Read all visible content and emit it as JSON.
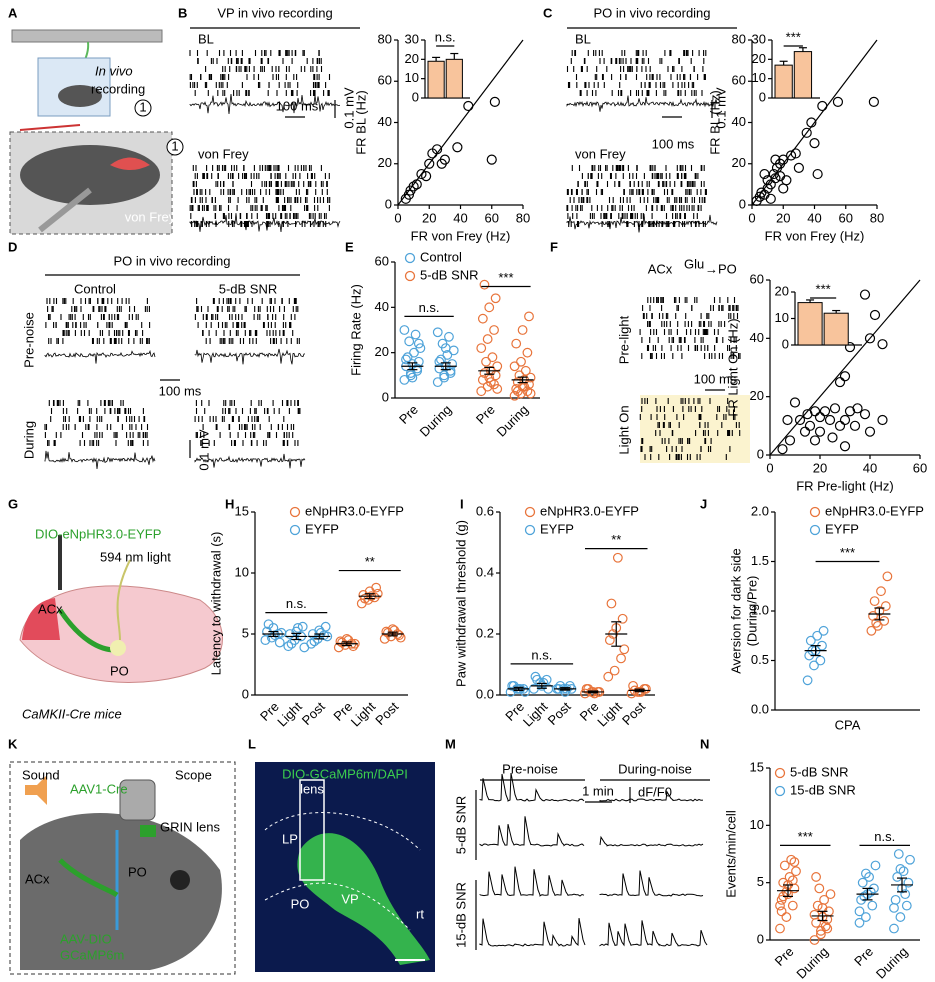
{
  "panels": [
    {
      "letter": "A",
      "texts": [
        "In vivo",
        "recording",
        "1",
        "1",
        "von Frey"
      ]
    },
    {
      "letter": "B",
      "texts": [
        "VP in vivo recording",
        "BL",
        "von Frey",
        "100 ms",
        "0.1 mV"
      ],
      "chart": {
        "type": "scatter",
        "xlabel": "FR von Frey (Hz)",
        "ylabel": "FR BL (Hz)",
        "xlim": [
          0,
          80
        ],
        "ylim": [
          0,
          80
        ],
        "xticks": [
          0,
          20,
          40,
          60,
          80
        ],
        "yticks": [
          0,
          20,
          40,
          60,
          80
        ],
        "diagonal": true,
        "color": "#000000",
        "x": [
          5,
          7,
          8,
          10,
          12,
          15,
          18,
          20,
          22,
          25,
          28,
          30,
          38,
          45,
          60,
          62
        ],
        "y": [
          3,
          5,
          7,
          9,
          10,
          15,
          14,
          20,
          25,
          27,
          20,
          22,
          28,
          48,
          22,
          50
        ],
        "inset": {
          "type": "bar",
          "ylim": [
            0,
            30
          ],
          "yticks": [
            0,
            10,
            20,
            30
          ],
          "values": [
            19,
            20
          ],
          "errors": [
            2,
            3
          ],
          "color": "#f8c49c",
          "annotation": "n.s."
        }
      }
    },
    {
      "letter": "C",
      "texts": [
        "PO in vivo recording",
        "BL",
        "von Frey",
        "100 ms",
        "0.1 mV"
      ],
      "chart": {
        "type": "scatter",
        "xlabel": "FR von Frey (Hz)",
        "ylabel": "FR BL (Hz)",
        "xlim": [
          0,
          80
        ],
        "ylim": [
          0,
          80
        ],
        "xticks": [
          0,
          20,
          40,
          60,
          80
        ],
        "yticks": [
          0,
          20,
          40,
          60,
          80
        ],
        "diagonal": true,
        "color": "#000000",
        "x": [
          3,
          5,
          6,
          8,
          10,
          10,
          12,
          14,
          15,
          16,
          18,
          18,
          20,
          22,
          25,
          28,
          30,
          35,
          38,
          40,
          42,
          45,
          55,
          78,
          12,
          8,
          20,
          15
        ],
        "y": [
          2,
          4,
          6,
          5,
          8,
          12,
          10,
          15,
          13,
          18,
          20,
          14,
          22,
          12,
          24,
          25,
          18,
          35,
          40,
          30,
          15,
          48,
          50,
          50,
          3,
          15,
          8,
          22
        ],
        "inset": {
          "type": "bar",
          "ylim": [
            0,
            30
          ],
          "yticks": [
            0,
            10,
            20,
            30
          ],
          "values": [
            17,
            24
          ],
          "errors": [
            2,
            2
          ],
          "color": "#f8c49c",
          "annotation": "***"
        }
      }
    },
    {
      "letter": "D",
      "texts": [
        "PO in vivo recording",
        "Control",
        "5-dB SNR",
        "Pre-noise",
        "During",
        "100 ms",
        "0.1 mV"
      ]
    },
    {
      "letter": "E",
      "texts": [],
      "chart": {
        "type": "dot",
        "ylabel": "Firing Rate (Hz)",
        "ylim": [
          0,
          60
        ],
        "yticks": [
          0,
          20,
          40,
          60
        ],
        "categories": [
          "Pre",
          "During",
          "Pre",
          "During"
        ],
        "annotations": [
          "n.s.",
          "***"
        ],
        "series": [
          {
            "name": "Control",
            "color": "#4fa3d9",
            "values": [
              14,
              14,
              null,
              null
            ],
            "errors": [
              1.5,
              1.5,
              null,
              null
            ],
            "points": [
              [
                8,
                10,
                12,
                14,
                15,
                16,
                18,
                20,
                22,
                25,
                28,
                30,
                11,
                13,
                17,
                9,
                24
              ],
              [
                7,
                9,
                11,
                13,
                14,
                15,
                17,
                19,
                21,
                24,
                27,
                29,
                10,
                12,
                16,
                22
              ],
              null,
              null
            ]
          },
          {
            "name": "5-dB SNR",
            "color": "#e8743b",
            "values": [
              null,
              null,
              12,
              8
            ],
            "errors": [
              null,
              null,
              1.5,
              1.2
            ],
            "points": [
              null,
              null,
              [
                3,
                5,
                6,
                8,
                9,
                10,
                11,
                12,
                14,
                16,
                18,
                22,
                26,
                30,
                35,
                40,
                44,
                50,
                7,
                4
              ],
              [
                1,
                2,
                3,
                4,
                5,
                6,
                7,
                8,
                9,
                10,
                12,
                14,
                16,
                20,
                24,
                30,
                36,
                3,
                5,
                2
              ]
            ]
          }
        ]
      }
    },
    {
      "letter": "F",
      "texts": [
        "ACx",
        "Glu",
        "→PO",
        "Pre-light",
        "Light On",
        "100 ms"
      ],
      "chart": {
        "type": "scatter",
        "xlabel": "FR Pre-light (Hz)",
        "ylabel": "FR Light On (Hz)",
        "xlim": [
          0,
          60
        ],
        "ylim": [
          0,
          60
        ],
        "xticks": [
          0,
          20,
          40,
          60
        ],
        "yticks": [
          0,
          20,
          40,
          60
        ],
        "diagonal": true,
        "color": "#000000",
        "x": [
          5,
          8,
          10,
          12,
          14,
          15,
          16,
          18,
          20,
          20,
          22,
          24,
          25,
          26,
          28,
          30,
          30,
          32,
          34,
          35,
          38,
          40,
          45,
          30,
          28,
          32,
          38,
          40,
          45,
          42,
          7,
          18
        ],
        "y": [
          2,
          5,
          18,
          12,
          8,
          14,
          10,
          15,
          13,
          8,
          15,
          12,
          6,
          16,
          10,
          12,
          3,
          15,
          10,
          16,
          14,
          8,
          12,
          27,
          25,
          37,
          55,
          40,
          38,
          48,
          12,
          5
        ],
        "inset": {
          "type": "bar",
          "ylim": [
            0,
            20
          ],
          "yticks": [
            0,
            10,
            20
          ],
          "values": [
            16,
            12
          ],
          "errors": [
            1,
            1
          ],
          "color": "#f8c49c",
          "annotation": "***"
        }
      }
    },
    {
      "letter": "G",
      "texts": [
        "DIO-eNpHR3.0-EYFP",
        "594 nm light",
        "ACx",
        "PO",
        "CaMKII-Cre mice"
      ]
    },
    {
      "letter": "H",
      "texts": [],
      "chart": {
        "type": "dot",
        "ylabel": "Latency to withdrawal (s)",
        "ylim": [
          0,
          15
        ],
        "yticks": [
          0,
          5,
          10,
          15
        ],
        "categories": [
          "Pre",
          "Light",
          "Post",
          "Pre",
          "Light",
          "Post"
        ],
        "annotations": [
          "n.s.",
          "**"
        ],
        "series": [
          {
            "name": "eNpHR3.0-EYFP",
            "color": "#e8743b",
            "values": [
              null,
              null,
              null,
              4.2,
              8.1,
              5.0
            ],
            "errors": [
              null,
              null,
              null,
              0.15,
              0.2,
              0.15
            ],
            "points": [
              null,
              null,
              null,
              [
                3.9,
                4.1,
                4.2,
                4.4,
                4.6,
                4,
                4.3,
                4.5,
                4.2
              ],
              [
                7.5,
                7.8,
                8,
                8.2,
                8.5,
                8.8,
                7.9,
                8.1,
                8.3
              ],
              [
                4.6,
                4.8,
                5,
                5.2,
                5.4,
                4.9,
                5.1,
                5.3,
                4.7
              ]
            ]
          },
          {
            "name": "EYFP",
            "color": "#4fa3d9",
            "values": [
              5,
              4.8,
              4.8,
              null,
              null,
              null
            ],
            "errors": [
              0.2,
              0.25,
              0.2,
              null,
              null,
              null
            ],
            "points": [
              [
                4.5,
                4.7,
                5,
                5.2,
                5.5,
                4.3,
                5.8,
                4.9,
                5.1
              ],
              [
                4,
                4.5,
                4.8,
                5,
                5.2,
                5.6,
                4.2,
                5.5,
                3.9
              ],
              [
                4.2,
                4.6,
                4.9,
                5,
                5.3,
                5.6,
                4.4,
                5.1,
                4.8
              ],
              null,
              null,
              null
            ]
          }
        ]
      }
    },
    {
      "letter": "I",
      "texts": [],
      "chart": {
        "type": "dot",
        "ylabel": "Paw withdrawal threshold (g)",
        "ylim": [
          0,
          0.6
        ],
        "yticks": [
          {
            "value": 0,
            "label": "0.0"
          },
          0.2,
          0.4,
          0.6
        ],
        "categories": [
          "Pre",
          "Light",
          "Post",
          "Pre",
          "Light",
          "Post"
        ],
        "annotations": [
          "n.s.",
          "**"
        ],
        "series": [
          {
            "name": "eNpHR3.0-EYFP",
            "color": "#e8743b",
            "values": [
              null,
              null,
              null,
              0.01,
              0.2,
              0.015
            ],
            "errors": [
              null,
              null,
              null,
              0.003,
              0.04,
              0.004
            ],
            "points": [
              null,
              null,
              null,
              [
                0.005,
                0.01,
                0.01,
                0.02,
                0.01,
                0.01,
                0.02,
                0.005
              ],
              [
                0.06,
                0.08,
                0.12,
                0.18,
                0.22,
                0.25,
                0.3,
                0.45,
                0.15,
                0.2
              ],
              [
                0.005,
                0.01,
                0.02,
                0.03,
                0.01,
                0.02,
                0.015,
                0.01
              ]
            ]
          },
          {
            "name": "EYFP",
            "color": "#4fa3d9",
            "values": [
              0.02,
              0.03,
              0.02,
              null,
              null,
              null
            ],
            "errors": [
              0.005,
              0.008,
              0.004,
              null,
              null,
              null
            ],
            "points": [
              [
                0.01,
                0.02,
                0.02,
                0.03,
                0.02,
                0.01,
                0.03,
                0.02
              ],
              [
                0.02,
                0.04,
                0.05,
                0.06,
                0.03,
                0.02,
                0.05,
                0.04
              ],
              [
                0.02,
                0.02,
                0.03,
                0.02,
                0.01,
                0.02,
                0.03,
                0.02
              ],
              null,
              null,
              null
            ]
          }
        ]
      }
    },
    {
      "letter": "J",
      "texts": [],
      "chart": {
        "type": "dot",
        "ylabel": "Aversion for dark side",
        "ylabel2": "(During/Pre)",
        "ylim": [
          0,
          2
        ],
        "yticks": [
          {
            "value": 0,
            "label": "0.0"
          },
          0.5,
          {
            "value": 1,
            "label": "1.0"
          },
          1.5,
          {
            "value": 2,
            "label": "2.0"
          }
        ],
        "categories": [
          "CPA"
        ],
        "annotations": [
          "***"
        ],
        "series": [
          {
            "name": "eNpHR3.0-EYFP",
            "color": "#e8743b",
            "values": [
              0.97
            ],
            "errors": [
              0.06
            ],
            "points": [
              [
                0.8,
                0.85,
                0.9,
                0.95,
                1.0,
                1.05,
                1.1,
                1.2,
                1.35,
                0.88
              ]
            ]
          },
          {
            "name": "EYFP",
            "color": "#4fa3d9",
            "values": [
              0.6
            ],
            "errors": [
              0.05
            ],
            "points": [
              [
                0.3,
                0.45,
                0.5,
                0.55,
                0.6,
                0.65,
                0.7,
                0.75,
                0.8,
                0.6
              ]
            ]
          }
        ]
      }
    },
    {
      "letter": "K",
      "texts": [
        "Sound",
        "Scope",
        "AAV1-Cre",
        "GRIN lens",
        "ACx",
        "PO",
        "AAV-DIO",
        "GCaMP6m"
      ]
    },
    {
      "letter": "L",
      "texts": [
        "DIO-GCaMP6m/DAPI",
        "lens",
        "LP",
        "PO",
        "VP",
        "rt"
      ]
    },
    {
      "letter": "M",
      "texts": [
        "Pre-noise",
        "During-noise",
        "1 min",
        "dF/F0",
        "5-dB SNR",
        "15-dB SNR"
      ]
    },
    {
      "letter": "N",
      "texts": [],
      "chart": {
        "type": "dot",
        "ylabel": "Events/min/cell",
        "ylim": [
          0,
          15
        ],
        "yticks": [
          0,
          5,
          10,
          15
        ],
        "categories": [
          "Pre",
          "During",
          "Pre",
          "During"
        ],
        "annotations": [
          "***",
          "n.s."
        ],
        "series": [
          {
            "name": "5-dB SNR",
            "color": "#e8743b",
            "values": [
              4.3,
              2.1,
              null,
              null
            ],
            "errors": [
              0.5,
              0.4,
              null,
              null
            ],
            "points": [
              [
                1,
                2,
                3,
                3.5,
                4,
                4.5,
                5,
                5.5,
                6,
                6.5,
                7,
                3,
                4.2,
                5.2,
                2.5,
                4.8,
                6.8,
                3.8
              ],
              [
                0,
                0.5,
                1,
                1.5,
                2,
                2.5,
                3,
                3.5,
                4,
                4.5,
                1.2,
                2.2,
                0.8,
                1.8,
                5.5,
                2.8
              ],
              null,
              null
            ]
          },
          {
            "name": "15-dB SNR",
            "color": "#4fa3d9",
            "values": [
              null,
              null,
              4.0,
              4.8
            ],
            "errors": [
              null,
              null,
              0.5,
              0.6
            ],
            "points": [
              null,
              null,
              [
                1.5,
                2,
                3,
                3.5,
                4,
                4.5,
                5,
                5.5,
                6.5,
                3.8,
                4.2,
                2.5,
                5.8
              ],
              [
                1,
                2,
                3,
                3.5,
                4.5,
                5,
                5.5,
                6,
                7,
                7.5,
                4,
                2.8,
                6.2
              ]
            ]
          }
        ]
      }
    }
  ]
}
